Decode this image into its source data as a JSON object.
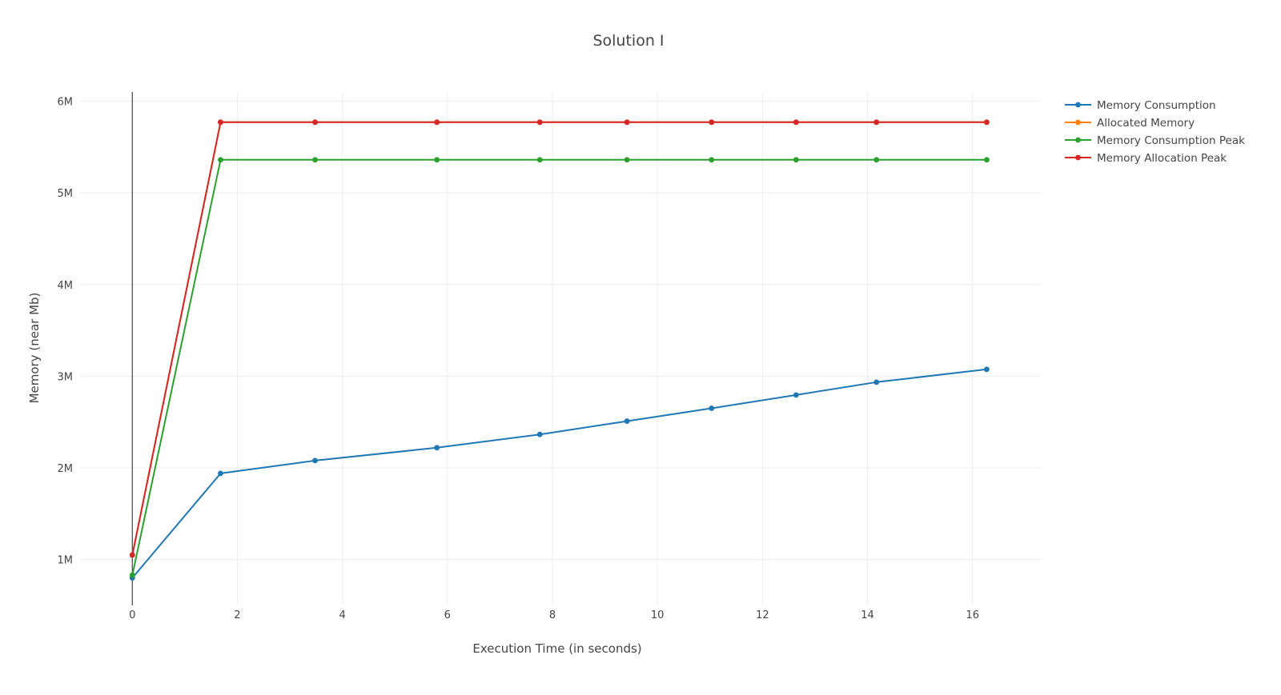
{
  "chart_data": {
    "type": "line",
    "title": "Solution I",
    "xlabel": "Execution Time (in seconds)",
    "ylabel": "Memory (near Mb)",
    "xlim": [
      -1.3,
      17.3
    ],
    "ylim": [
      500000,
      6100000
    ],
    "x_ticks": [
      0,
      2,
      4,
      6,
      8,
      10,
      12,
      14,
      16
    ],
    "y_ticks": [
      1000000,
      2000000,
      3000000,
      4000000,
      5000000,
      6000000
    ],
    "y_tick_labels": [
      "1M",
      "2M",
      "3M",
      "4M",
      "5M",
      "6M"
    ],
    "x_tick_labels": [
      "0",
      "2",
      "4",
      "6",
      "8",
      "10",
      "12",
      "14",
      "16"
    ],
    "grid": true,
    "legend_position": "top-right",
    "x": [
      0,
      1.68,
      3.48,
      5.8,
      7.76,
      9.42,
      11.03,
      12.64,
      14.17,
      16.27
    ],
    "series": [
      {
        "name": "Memory Consumption",
        "color": "#1f77b4",
        "values": [
          800000,
          1940000,
          2080000,
          2220000,
          2365000,
          2510000,
          2650000,
          2795000,
          2935000,
          3075000
        ]
      },
      {
        "name": "Allocated Memory",
        "color": "#ff7f0e",
        "values": [
          1050000,
          5770000,
          5770000,
          5770000,
          5770000,
          5770000,
          5770000,
          5770000,
          5770000,
          5770000
        ]
      },
      {
        "name": "Memory Consumption Peak",
        "color": "#2ca02c",
        "values": [
          830000,
          5360000,
          5360000,
          5360000,
          5360000,
          5360000,
          5360000,
          5360000,
          5360000,
          5360000
        ]
      },
      {
        "name": "Memory Allocation Peak",
        "color": "#d62728",
        "values": [
          1050000,
          5770000,
          5770000,
          5770000,
          5770000,
          5770000,
          5770000,
          5770000,
          5770000,
          5770000
        ]
      }
    ]
  }
}
